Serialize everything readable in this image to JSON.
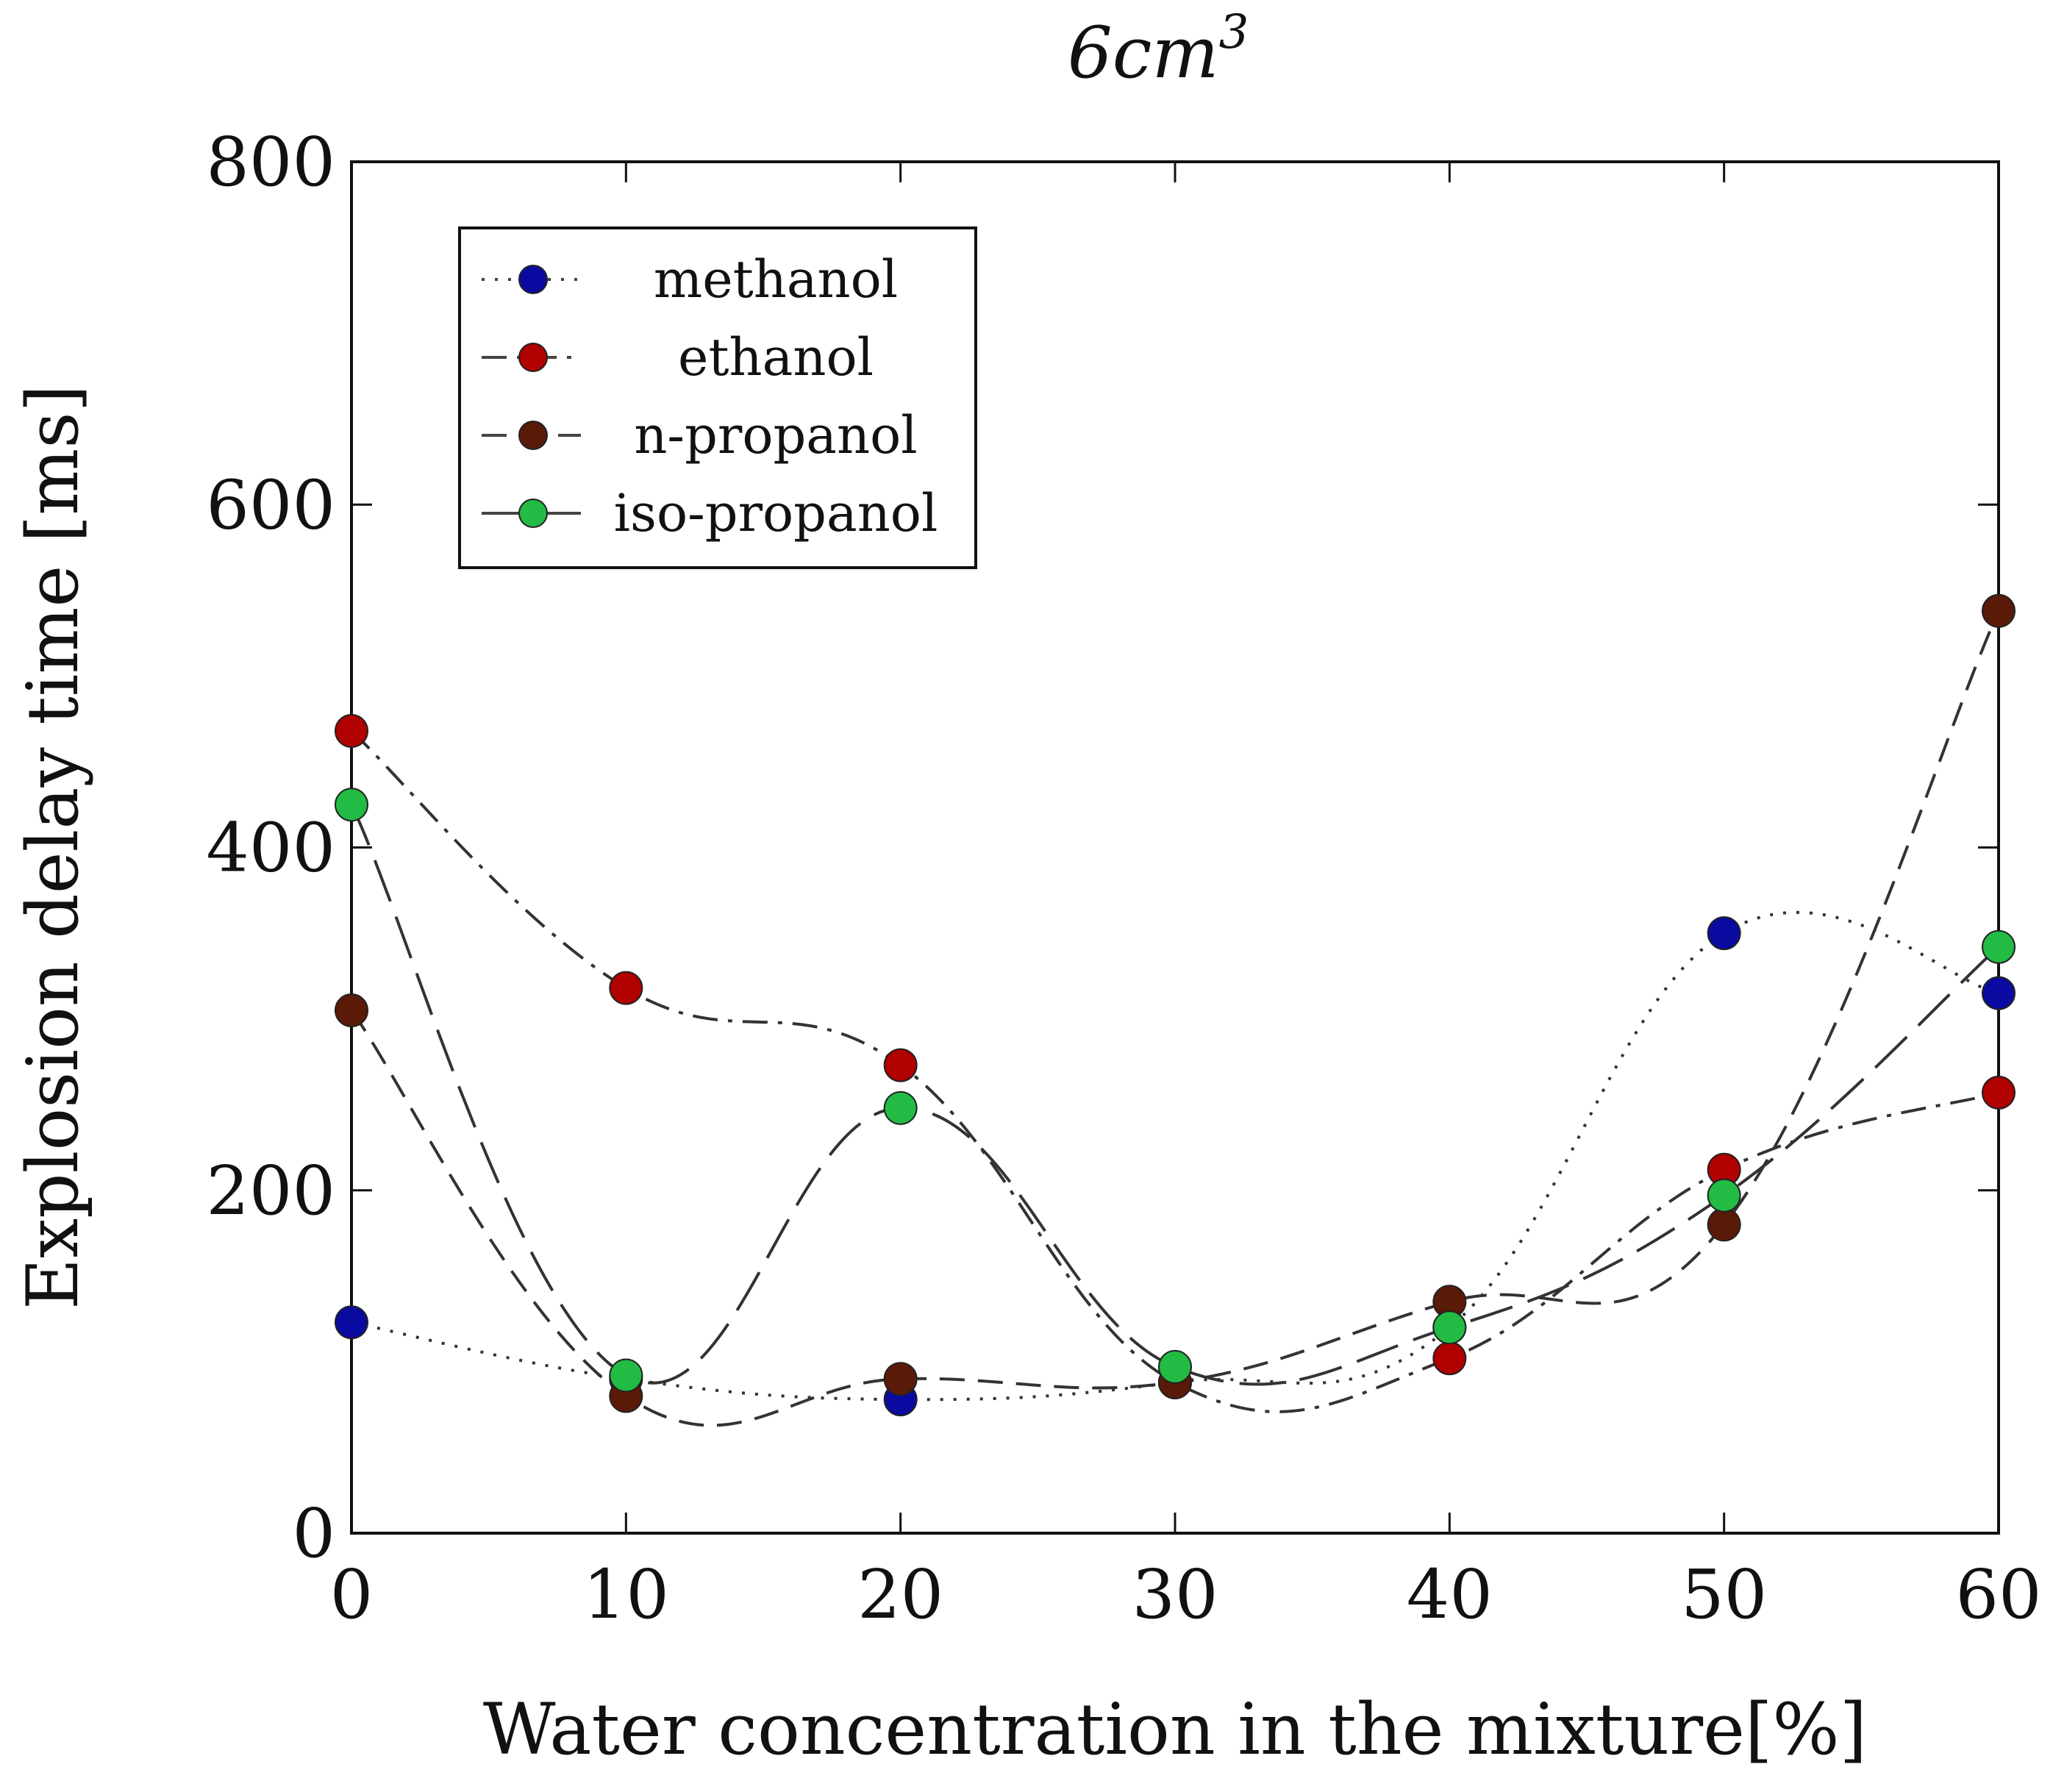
{
  "chart_data": {
    "type": "line",
    "title": "6cm",
    "title_superscript": "3",
    "xlabel": "Water concentration in the mixture[%]",
    "ylabel": "Explosion delay time [ms]",
    "xlim": [
      0,
      60
    ],
    "ylim": [
      0,
      800
    ],
    "x": [
      0,
      10,
      20,
      30,
      40,
      50,
      60
    ],
    "xticks": [
      "0",
      "10",
      "20",
      "30",
      "40",
      "50",
      "60"
    ],
    "yticks": [
      "0",
      "200",
      "400",
      "600",
      "800"
    ],
    "grid": false,
    "legend_position": "top-left",
    "series": [
      {
        "name": "methanol",
        "color": "#0a0aa0",
        "line_style": "dotted",
        "values": [
          123,
          90,
          78,
          88,
          120,
          350,
          315
        ]
      },
      {
        "name": "ethanol",
        "color": "#b00000",
        "line_style": "dash-dot",
        "values": [
          468,
          318,
          273,
          88,
          102,
          212,
          257
        ]
      },
      {
        "name": "n-propanol",
        "color": "#5a1a08",
        "line_style": "dashed",
        "values": [
          305,
          80,
          90,
          88,
          135,
          180,
          538
        ]
      },
      {
        "name": "iso-propanol",
        "color": "#22bb44",
        "line_style": "long-dash",
        "values": [
          425,
          92,
          248,
          97,
          120,
          197,
          342
        ]
      }
    ]
  }
}
